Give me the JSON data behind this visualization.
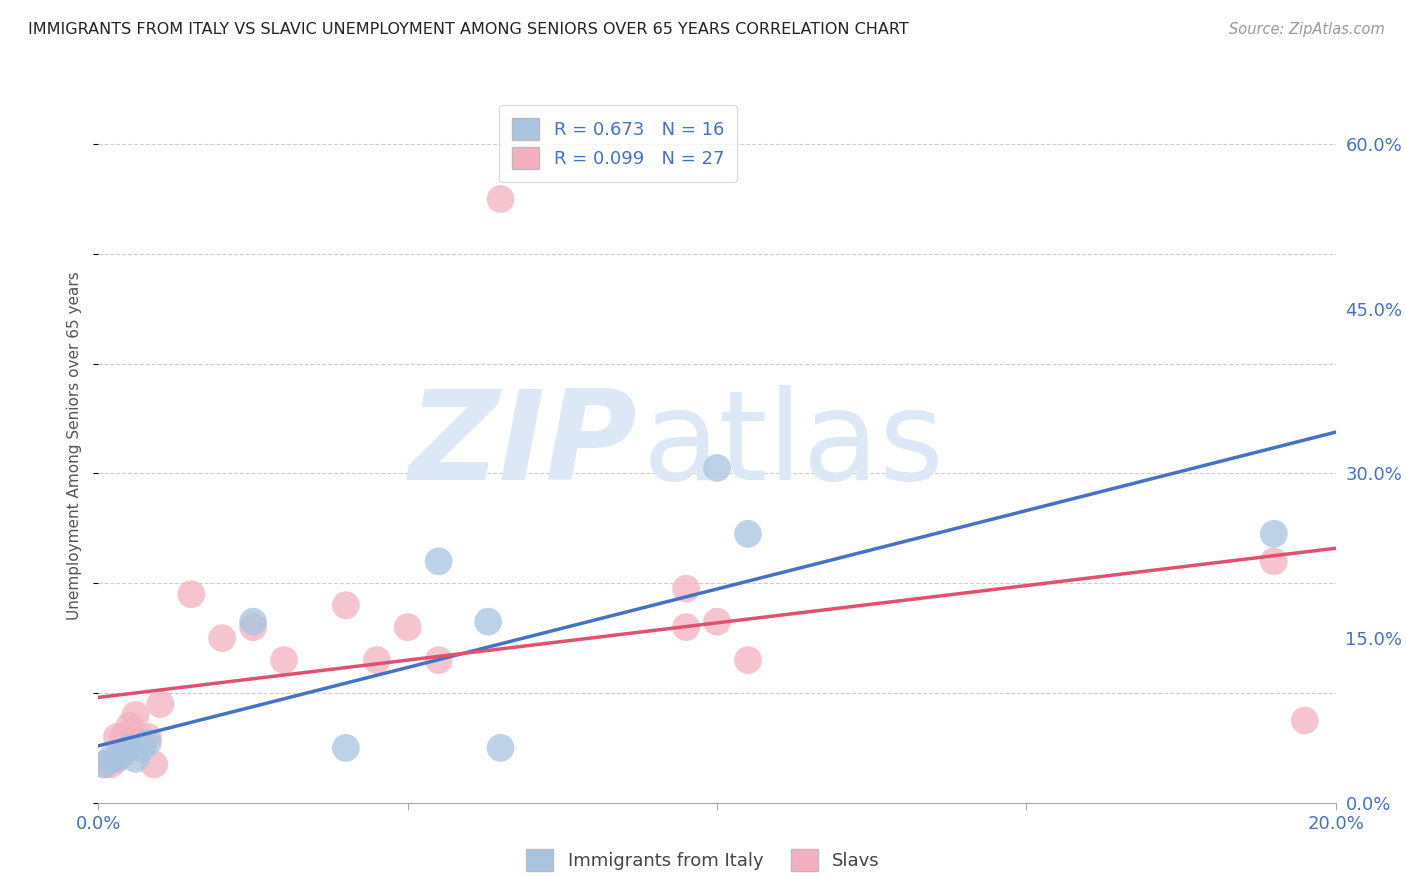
{
  "title": "IMMIGRANTS FROM ITALY VS SLAVIC UNEMPLOYMENT AMONG SENIORS OVER 65 YEARS CORRELATION CHART",
  "source": "Source: ZipAtlas.com",
  "ylabel": "Unemployment Among Seniors over 65 years",
  "xlim": [
    0.0,
    0.2
  ],
  "ylim": [
    0.0,
    0.65
  ],
  "xticks": [
    0.0,
    0.05,
    0.1,
    0.15,
    0.2
  ],
  "xtick_labels": [
    "0.0%",
    "",
    "",
    "",
    "20.0%"
  ],
  "yticks": [
    0.0,
    0.15,
    0.3,
    0.45,
    0.6
  ],
  "ytick_labels_right": [
    "0.0%",
    "15.0%",
    "30.0%",
    "45.0%",
    "60.0%"
  ],
  "italy_R": "0.673",
  "italy_N": "16",
  "slavs_R": "0.099",
  "slavs_N": "27",
  "italy_x": [
    0.001,
    0.002,
    0.003,
    0.004,
    0.005,
    0.006,
    0.007,
    0.008,
    0.025,
    0.04,
    0.055,
    0.063,
    0.065,
    0.1,
    0.105,
    0.19
  ],
  "italy_y": [
    0.035,
    0.04,
    0.04,
    0.045,
    0.05,
    0.04,
    0.05,
    0.055,
    0.165,
    0.05,
    0.22,
    0.165,
    0.05,
    0.305,
    0.245,
    0.245
  ],
  "slavs_x": [
    0.001,
    0.002,
    0.003,
    0.003,
    0.004,
    0.005,
    0.006,
    0.006,
    0.007,
    0.008,
    0.009,
    0.01,
    0.015,
    0.02,
    0.025,
    0.03,
    0.04,
    0.045,
    0.05,
    0.055,
    0.065,
    0.095,
    0.095,
    0.1,
    0.105,
    0.19,
    0.195
  ],
  "slavs_y": [
    0.035,
    0.035,
    0.04,
    0.06,
    0.06,
    0.07,
    0.055,
    0.08,
    0.055,
    0.06,
    0.035,
    0.09,
    0.19,
    0.15,
    0.16,
    0.13,
    0.18,
    0.13,
    0.16,
    0.13,
    0.55,
    0.16,
    0.195,
    0.165,
    0.13,
    0.22,
    0.075
  ],
  "italy_scatter_color": "#a8c4e0",
  "slavs_scatter_color": "#f4b0c0",
  "line_italy_color": "#4472c4",
  "line_slavs_color": "#e05070",
  "bg_color": "#ffffff",
  "grid_color": "#c8c8c8",
  "title_color": "#222222",
  "axis_label_color": "#555555",
  "tick_color": "#4472c4",
  "watermark_color": "#dce8f5",
  "legend_label_color": "#4472c4"
}
